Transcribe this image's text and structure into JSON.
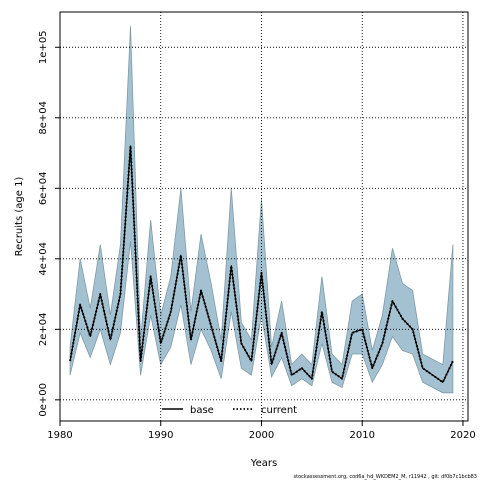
{
  "chart_data": {
    "type": "area",
    "xlabel": "Years",
    "ylabel": "Recruits (age 1)",
    "xlim": [
      1980,
      2020.5
    ],
    "ylim": [
      -6000,
      110000
    ],
    "xticks": [
      1980,
      1990,
      2000,
      2010,
      2020
    ],
    "xtick_labels": [
      "1980",
      "1990",
      "2000",
      "2010",
      "2020"
    ],
    "yticks": [
      0,
      20000,
      40000,
      60000,
      80000,
      100000
    ],
    "ytick_labels": [
      "0e+00",
      "2e+04",
      "4e+04",
      "6e+04",
      "8e+04",
      "1e+05"
    ],
    "grid": true,
    "legend_position": "bottom-center",
    "x": [
      1981,
      1982,
      1983,
      1984,
      1985,
      1986,
      1987,
      1988,
      1989,
      1990,
      1991,
      1992,
      1993,
      1994,
      1995,
      1996,
      1997,
      1998,
      1999,
      2000,
      2001,
      2002,
      2003,
      2004,
      2005,
      2006,
      2007,
      2008,
      2009,
      2010,
      2011,
      2012,
      2013,
      2014,
      2015,
      2016,
      2017,
      2018,
      2019
    ],
    "series": [
      {
        "name": "base",
        "line_style": "solid",
        "values": [
          11000,
          27000,
          18000,
          30000,
          17000,
          30000,
          72000,
          11000,
          35000,
          16000,
          25000,
          41000,
          17000,
          31000,
          21000,
          11000,
          38000,
          16000,
          11000,
          36000,
          10000,
          19000,
          7000,
          9000,
          6000,
          25000,
          8000,
          6000,
          19000,
          20000,
          9000,
          16000,
          28000,
          23000,
          20000,
          9000,
          7000,
          5000,
          11000
        ]
      },
      {
        "name": "current",
        "line_style": "dotted",
        "values": [
          11000,
          27000,
          18000,
          30000,
          17000,
          30000,
          72000,
          11000,
          35000,
          16000,
          25000,
          41000,
          17000,
          31000,
          21000,
          11000,
          38000,
          16000,
          11000,
          36000,
          10000,
          19000,
          7000,
          9000,
          6000,
          25000,
          8000,
          6000,
          19000,
          20000,
          9000,
          16000,
          28000,
          23000,
          20000,
          9000,
          7000,
          5000,
          11000
        ]
      }
    ],
    "band": {
      "lower": [
        7000,
        19000,
        12000,
        20000,
        10000,
        19000,
        45000,
        7000,
        24000,
        10000,
        15000,
        27000,
        10000,
        20000,
        14000,
        6000,
        25000,
        9000,
        7000,
        24000,
        6500,
        12000,
        4000,
        6000,
        4000,
        16000,
        5000,
        3500,
        13000,
        13000,
        5000,
        10000,
        18000,
        14000,
        13000,
        5000,
        3500,
        2000,
        2000
      ],
      "upper": [
        15000,
        40000,
        26000,
        44000,
        24000,
        44000,
        106000,
        17000,
        51000,
        24000,
        35000,
        60000,
        25000,
        47000,
        33000,
        17000,
        60000,
        22000,
        17000,
        57000,
        15000,
        28000,
        10000,
        13000,
        10000,
        35000,
        13000,
        10000,
        28000,
        30000,
        14000,
        24000,
        43000,
        33000,
        31000,
        13000,
        11500,
        10000,
        44000
      ]
    }
  },
  "legend": {
    "items": [
      {
        "label": "base"
      },
      {
        "label": "current"
      }
    ]
  },
  "footnote": "stockassessment.org, cod6a_hd_WKDEM2_M, r11942 , git: df0b7c1bcb83",
  "colors": {
    "band_fill": "#a3c1d0",
    "band_stroke": "#7f9aa8",
    "line": "#000000",
    "grid": "#000000"
  }
}
